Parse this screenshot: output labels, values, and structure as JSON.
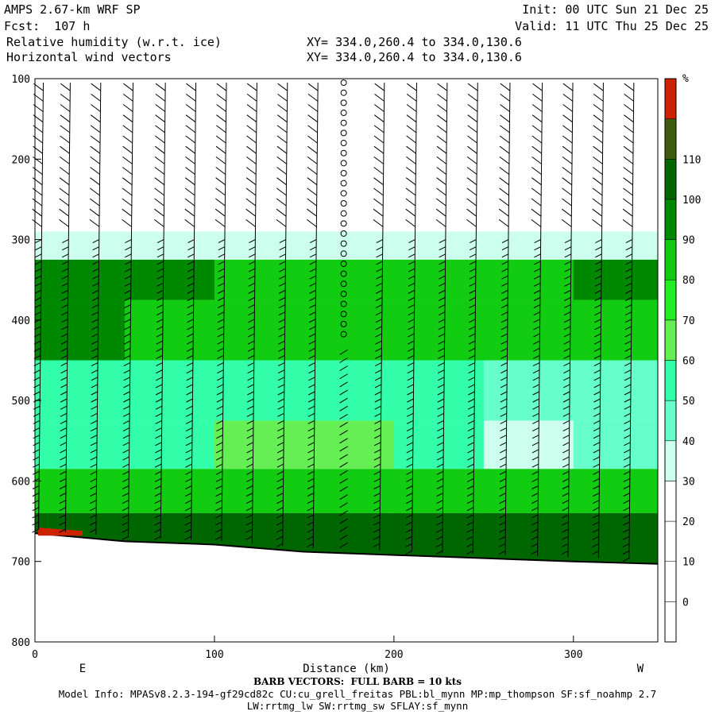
{
  "header": {
    "model": "AMPS 2.67-km WRF SP",
    "forecast": "Fcst:  107 h",
    "field1": "Relative humidity (w.r.t. ice)",
    "field2": "Horizontal wind vectors",
    "xy1": "XY= 334.0,260.4 to 334.0,130.6",
    "xy2": "XY= 334.0,260.4 to 334.0,130.6",
    "init": "Init: 00 UTC Sun 21 Dec 25",
    "valid": "Valid: 11 UTC Thu 25 Dec 25"
  },
  "footer": {
    "barb_note": "BARB VECTORS:  FULL BARB = 10 kts",
    "model_info": "Model Info: MPASv8.2.3-194-gf29cd82c CU:cu_grell_freitas PBL:bl_mynn MP:mp_thompson SF:sf_noahmp 2.7",
    "model_info2": "LW:rrtmg_lw SW:rrtmg_sw SFLAY:sf_mynn"
  },
  "chart_data": {
    "type": "heatmap",
    "xlabel": "Distance (km)",
    "ylabel": "",
    "xlim": [
      0,
      347
    ],
    "ylim": [
      800,
      100
    ],
    "x_ticks": [
      0,
      100,
      200,
      300
    ],
    "y_ticks": [
      100,
      200,
      300,
      400,
      500,
      600,
      700,
      800
    ],
    "left_end_label": "E",
    "right_end_label": "W",
    "colorbar": {
      "unit": "%",
      "levels": [
        0,
        10,
        20,
        30,
        40,
        50,
        60,
        70,
        80,
        90,
        100,
        110
      ],
      "colors": [
        "#ffffff",
        "#ffffff",
        "#ffffff",
        "#ffffff",
        "#ccffee",
        "#66ffcc",
        "#33ffaa",
        "#66ee55",
        "#22ee22",
        "#11cc11",
        "#008800",
        "#006600",
        "#405a10",
        "#cc2200"
      ]
    },
    "rh_cross_section": [
      {
        "pressure": 300,
        "rh": [
          30,
          35,
          35,
          35,
          35,
          35,
          35,
          40
        ]
      },
      {
        "pressure": 350,
        "rh": [
          90,
          90,
          90,
          85,
          80,
          80,
          90,
          90
        ]
      },
      {
        "pressure": 400,
        "rh": [
          90,
          90,
          85,
          80,
          80,
          80,
          80,
          80
        ]
      },
      {
        "pressure": 500,
        "rh": [
          50,
          50,
          50,
          50,
          60,
          50,
          40,
          50
        ]
      },
      {
        "pressure": 550,
        "rh": [
          50,
          50,
          60,
          60,
          60,
          40,
          30,
          50
        ]
      },
      {
        "pressure": 620,
        "rh": [
          80,
          80,
          80,
          80,
          80,
          80,
          80,
          80
        ]
      },
      {
        "pressure": 660,
        "rh": [
          110,
          100,
          100,
          100,
          100,
          100,
          100,
          100
        ]
      }
    ],
    "rh_sample_x": [
      0,
      50,
      100,
      150,
      200,
      250,
      300,
      347
    ],
    "surface_pressure": [
      {
        "x": 0,
        "p": 665
      },
      {
        "x": 50,
        "p": 675
      },
      {
        "x": 100,
        "p": 679
      },
      {
        "x": 150,
        "p": 688
      },
      {
        "x": 200,
        "p": 692
      },
      {
        "x": 250,
        "p": 696
      },
      {
        "x": 300,
        "p": 700
      },
      {
        "x": 347,
        "p": 703
      }
    ],
    "barb_columns_x": [
      2,
      17,
      34,
      52,
      70,
      87,
      104,
      121,
      138,
      155,
      172,
      192,
      210,
      227,
      244,
      262,
      280,
      297,
      314,
      331
    ],
    "calm_column_x": 172
  }
}
